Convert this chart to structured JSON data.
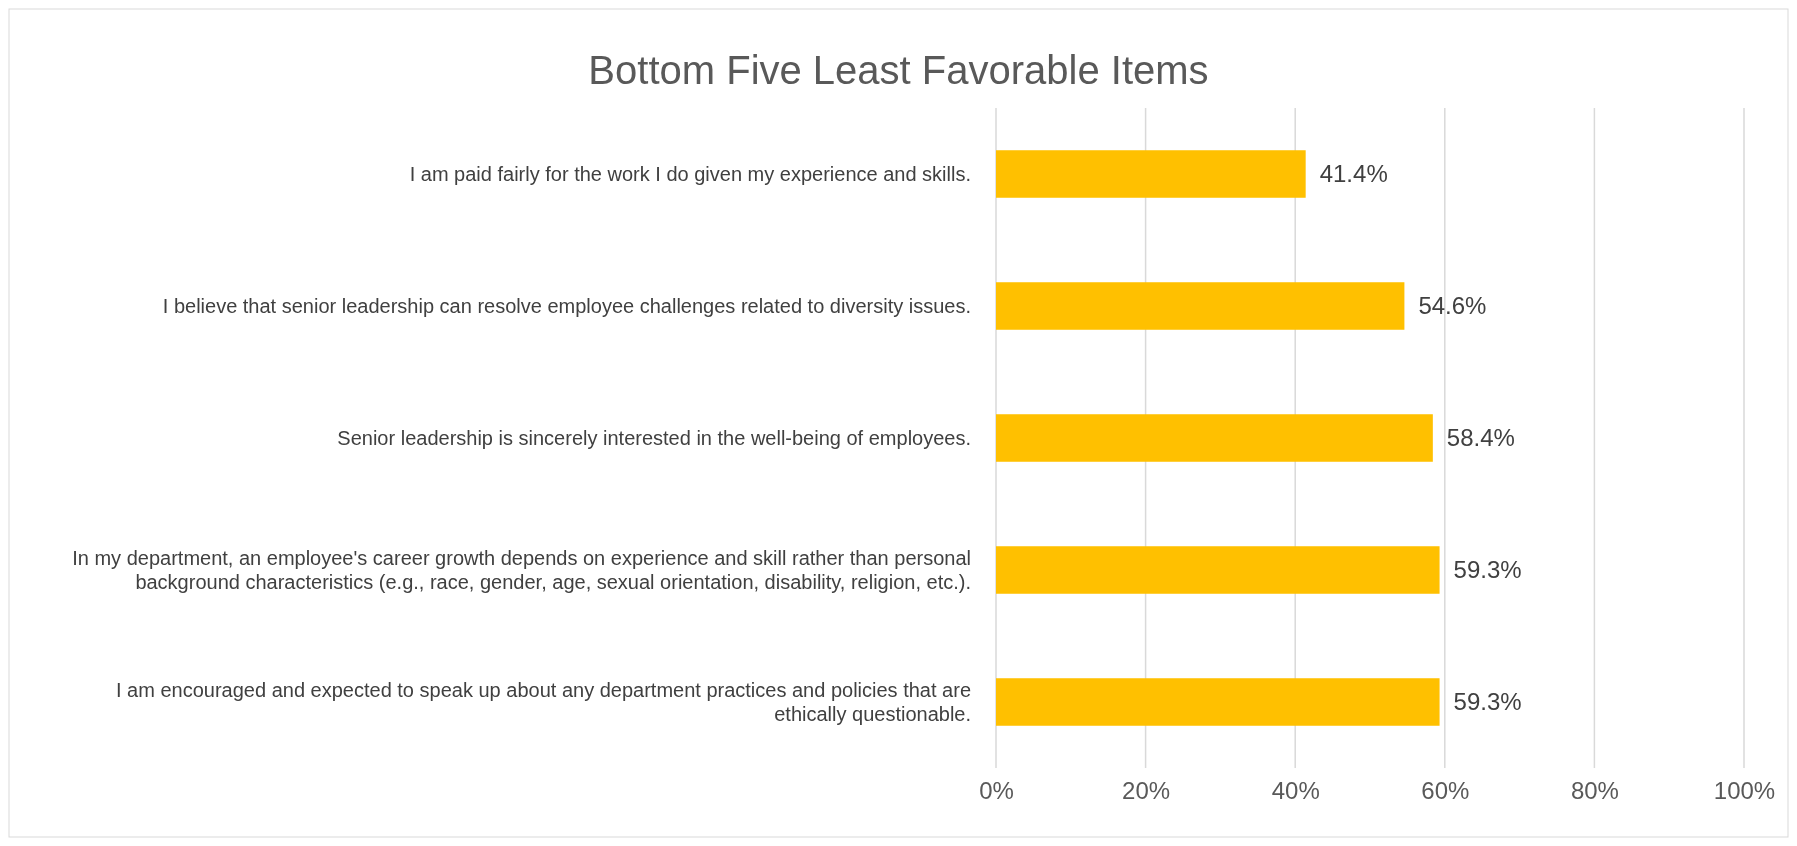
{
  "chart_data": {
    "type": "bar",
    "orientation": "horizontal",
    "title": "Bottom Five Least Favorable Items",
    "categories": [
      "I am paid fairly for the work I do given my experience and skills.",
      "I believe that senior leadership can resolve employee challenges related to diversity issues.",
      "Senior leadership is sincerely interested in the well-being of employees.",
      "In my department, an employee's career growth depends on experience and skill rather than personal background characteristics (e.g., race, gender, age, sexual orientation, disability, religion, etc.).",
      "I am encouraged and expected to speak up about any department practices and policies that are ethically questionable."
    ],
    "values": [
      41.4,
      54.6,
      58.4,
      59.3,
      59.3
    ],
    "value_labels": [
      "41.4%",
      "54.6%",
      "58.4%",
      "59.3%",
      "59.3%"
    ],
    "color": "#ffc000",
    "xlim": [
      0,
      100
    ],
    "xticks": [
      {
        "value": 0,
        "label": "0%"
      },
      {
        "value": 20,
        "label": "20%"
      },
      {
        "value": 40,
        "label": "40%"
      },
      {
        "value": 60,
        "label": "60%"
      },
      {
        "value": 80,
        "label": "80%"
      },
      {
        "value": 100,
        "label": "100%"
      }
    ],
    "grid": "x"
  }
}
